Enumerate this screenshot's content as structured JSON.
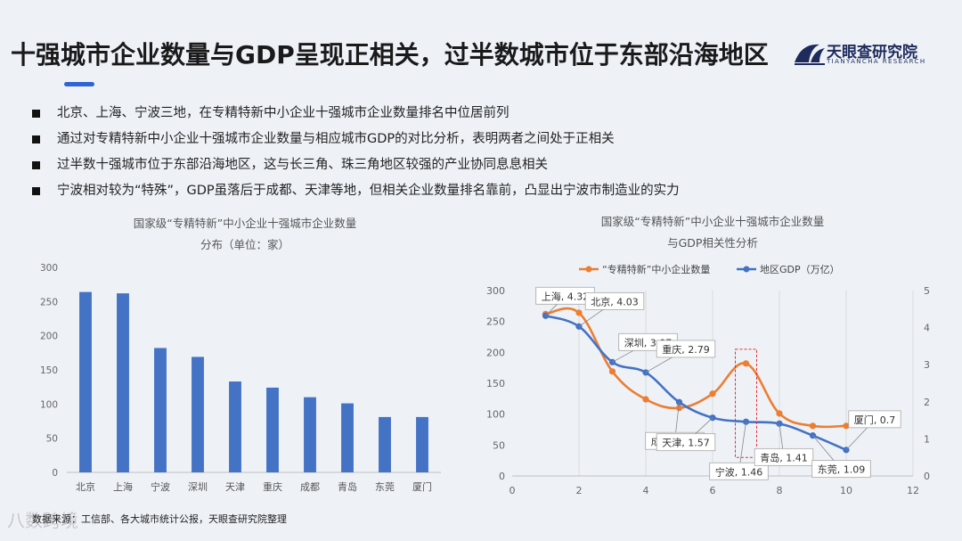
{
  "header": {
    "title": "十强城市企业数量与GDP呈现正相关，过半数城市位于东部沿海地区",
    "logo_name": "天眼查研究院",
    "logo_sub": "TIANYANCHA RESEARCH"
  },
  "bullets": [
    "北京、上海、宁波三地，在专精特新中小企业十强城市企业数量排名中位居前列",
    "通过对专精特新中小企业十强城市企业数量与相应城市GDP的对比分析，表明两者之间处于正相关",
    "过半数十强城市位于东部沿海地区，这与长三角、珠三角地区较强的产业协同息息相关",
    "宁波相对较为“特殊”，GDP虽落后于成都、天津等地，但相关企业数量排名靠前，凸显出宁波市制造业的实力"
  ],
  "footnote": "数据来源：工信部、各大城市统计公报，天眼查研究院整理",
  "watermark": "八数跨境",
  "colors": {
    "bar": "#4472c4",
    "orange": "#ed7d31",
    "blue": "#4472c4",
    "highlight": "#e03030"
  },
  "chart_data": [
    {
      "type": "bar",
      "title_line1": "国家级“专精特新”中小企业十强城市企业数量",
      "title_line2": "分布（单位：家）",
      "categories": [
        "北京",
        "上海",
        "宁波",
        "深圳",
        "天津",
        "重庆",
        "成都",
        "青岛",
        "东莞",
        "厦门"
      ],
      "values": [
        264,
        262,
        182,
        169,
        133,
        124,
        110,
        101,
        81,
        81
      ],
      "ylim": [
        0,
        300
      ],
      "yticks": [
        0,
        50,
        100,
        150,
        200,
        250,
        300
      ],
      "grid": false
    },
    {
      "type": "line",
      "title_line1": "国家级“专精特新”中小企业十强城市企业数量",
      "title_line2": "与GDP相关性分析",
      "xlim": [
        0,
        12
      ],
      "xticks": [
        0,
        2,
        4,
        6,
        8,
        10,
        12
      ],
      "ylim": [
        0,
        300
      ],
      "yticks": [
        0,
        50,
        100,
        150,
        200,
        250,
        300
      ],
      "y2lim": [
        0,
        5
      ],
      "y2ticks": [
        0,
        1,
        2,
        3,
        4,
        5
      ],
      "legend_position": "top",
      "series": [
        {
          "name": "“专精特新”中小企业数量",
          "axis": "left",
          "color": "#ed7d31",
          "x": [
            1,
            2,
            3,
            4,
            5,
            6,
            7,
            8,
            9,
            10
          ],
          "values": [
            262,
            264,
            169,
            124,
            110,
            133,
            182,
            101,
            81,
            81
          ]
        },
        {
          "name": "地区GDP（万亿）",
          "axis": "right",
          "color": "#4472c4",
          "x": [
            1,
            2,
            3,
            4,
            5,
            6,
            7,
            8,
            9,
            10
          ],
          "values": [
            4.32,
            4.03,
            3.07,
            2.79,
            1.99,
            1.57,
            1.46,
            1.41,
            1.09,
            0.7
          ]
        }
      ],
      "annotations": [
        {
          "text": "上海, 4.32",
          "x": 1,
          "y": 4.32
        },
        {
          "text": "北京, 4.03",
          "x": 2,
          "y": 4.03
        },
        {
          "text": "深圳, 3.07",
          "x": 3,
          "y": 3.07
        },
        {
          "text": "重庆, 2.79",
          "x": 4,
          "y": 2.79
        },
        {
          "text": "成都, 1.99",
          "x": 5,
          "y": 1.99
        },
        {
          "text": "天津, 1.57",
          "x": 6,
          "y": 1.57
        },
        {
          "text": "宁波, 1.46",
          "x": 7,
          "y": 1.46
        },
        {
          "text": "青岛, 1.41",
          "x": 8,
          "y": 1.41
        },
        {
          "text": "东莞, 1.09",
          "x": 9,
          "y": 1.09
        },
        {
          "text": "厦门, 0.7",
          "x": 10,
          "y": 0.7
        }
      ],
      "highlight_x": 7
    }
  ]
}
